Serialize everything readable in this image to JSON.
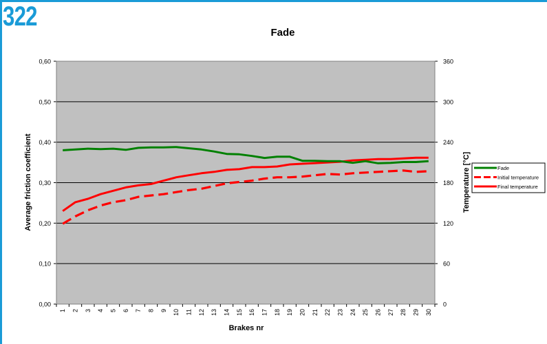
{
  "page_number": "322",
  "colors": {
    "frame": "#1a9bd7",
    "plot_bg": "#c0c0c0",
    "fade": "#008000",
    "temperature": "#ff0000"
  },
  "chart_data": {
    "type": "line",
    "title": "Fade",
    "xlabel": "Brakes nr",
    "ylabel": "Average friction coefficient",
    "y2label": "Temperature [°C]",
    "categories": [
      1,
      2,
      3,
      4,
      5,
      6,
      7,
      8,
      9,
      10,
      11,
      12,
      13,
      14,
      15,
      16,
      17,
      18,
      19,
      20,
      21,
      22,
      23,
      24,
      25,
      26,
      27,
      28,
      29,
      30
    ],
    "ylim": [
      0,
      0.6
    ],
    "yticks": [
      "0,00",
      "0,10",
      "0,20",
      "0,30",
      "0,40",
      "0,50",
      "0,60"
    ],
    "y2lim": [
      0,
      360
    ],
    "y2ticks": [
      "0",
      "60",
      "120",
      "180",
      "240",
      "300",
      "360"
    ],
    "grid": "horizontal",
    "legend_position": "right",
    "series": [
      {
        "name": "Fade",
        "axis": "left",
        "style": "solid",
        "color": "#008000",
        "values": [
          0.38,
          0.382,
          0.384,
          0.383,
          0.384,
          0.381,
          0.386,
          0.387,
          0.387,
          0.388,
          0.385,
          0.382,
          0.377,
          0.371,
          0.37,
          0.366,
          0.361,
          0.364,
          0.364,
          0.354,
          0.354,
          0.353,
          0.353,
          0.349,
          0.353,
          0.348,
          0.349,
          0.351,
          0.351,
          0.353
        ]
      },
      {
        "name": "Initial temperature",
        "axis": "right",
        "style": "dashed",
        "color": "#ff0000",
        "values": [
          119,
          130,
          139,
          146,
          151,
          154,
          159,
          161,
          163,
          166,
          169,
          171,
          175,
          179,
          181,
          183,
          186,
          188,
          188,
          189,
          191,
          193,
          192,
          194,
          195,
          196,
          197,
          198,
          196,
          197
        ]
      },
      {
        "name": "Final temperature",
        "axis": "right",
        "style": "solid",
        "color": "#ff0000",
        "values": [
          138,
          151,
          156,
          163,
          168,
          173,
          176,
          178,
          183,
          188,
          191,
          194,
          196,
          199,
          200,
          203,
          203,
          204,
          207,
          208,
          209,
          210,
          211,
          213,
          214,
          215,
          215,
          216,
          217,
          217
        ]
      }
    ]
  }
}
